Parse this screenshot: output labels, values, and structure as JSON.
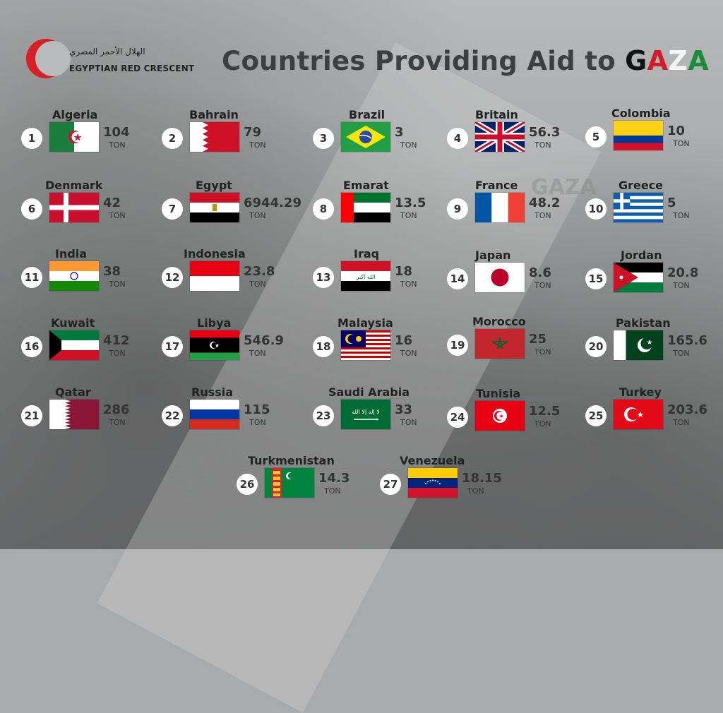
{
  "logo": {
    "arabic": "الهلال الأحمر المصري",
    "english": "EGYPTIAN RED CRESCENT"
  },
  "title": {
    "prefix": "Countries Providing Aid to ",
    "highlight_letters": [
      "G",
      "A",
      "Z",
      "A"
    ]
  },
  "watermark": "GAZA",
  "unit": "TON",
  "colors": {
    "red": "#d21e2b",
    "green": "#1a8c3a",
    "dark": "#3d3e40"
  },
  "countries": [
    {
      "rank": "1",
      "name": "Algeria",
      "value": "104",
      "flag": "algeria-flag-icon"
    },
    {
      "rank": "2",
      "name": "Bahrain",
      "value": "79",
      "flag": "bahrain-flag-icon"
    },
    {
      "rank": "3",
      "name": "Brazil",
      "value": "3",
      "flag": "brazil-flag-icon"
    },
    {
      "rank": "4",
      "name": "Britain",
      "value": "56.3",
      "flag": "britain-flag-icon"
    },
    {
      "rank": "5",
      "name": "Colombia",
      "value": "10",
      "flag": "colombia-flag-icon"
    },
    {
      "rank": "6",
      "name": "Denmark",
      "value": "42",
      "flag": "denmark-flag-icon"
    },
    {
      "rank": "7",
      "name": "Egypt",
      "value": "6944.29",
      "flag": "egypt-flag-icon"
    },
    {
      "rank": "8",
      "name": "Emarat",
      "value": "13.5",
      "flag": "emarat-flag-icon"
    },
    {
      "rank": "9",
      "name": "France",
      "value": "48.2",
      "flag": "france-flag-icon"
    },
    {
      "rank": "10",
      "name": "Greece",
      "value": "5",
      "flag": "greece-flag-icon"
    },
    {
      "rank": "11",
      "name": "India",
      "value": "38",
      "flag": "india-flag-icon"
    },
    {
      "rank": "12",
      "name": "Indonesia",
      "value": "23.8",
      "flag": "indonesia-flag-icon"
    },
    {
      "rank": "13",
      "name": "Iraq",
      "value": "18",
      "flag": "iraq-flag-icon"
    },
    {
      "rank": "14",
      "name": "Japan",
      "value": "8.6",
      "flag": "japan-flag-icon"
    },
    {
      "rank": "15",
      "name": "Jordan",
      "value": "20.8",
      "flag": "jordan-flag-icon"
    },
    {
      "rank": "16",
      "name": "Kuwait",
      "value": "412",
      "flag": "kuwait-flag-icon"
    },
    {
      "rank": "17",
      "name": "Libya",
      "value": "546.9",
      "flag": "libya-flag-icon"
    },
    {
      "rank": "18",
      "name": "Malaysia",
      "value": "16",
      "flag": "malaysia-flag-icon"
    },
    {
      "rank": "19",
      "name": "Morocco",
      "value": "25",
      "flag": "morocco-flag-icon"
    },
    {
      "rank": "20",
      "name": "Pakistan",
      "value": "165.6",
      "flag": "pakistan-flag-icon"
    },
    {
      "rank": "21",
      "name": "Qatar",
      "value": "286",
      "flag": "qatar-flag-icon"
    },
    {
      "rank": "22",
      "name": "Russia",
      "value": "115",
      "flag": "russia-flag-icon"
    },
    {
      "rank": "23",
      "name": "Saudi Arabia",
      "value": "33",
      "flag": "saudi-arabia-flag-icon"
    },
    {
      "rank": "24",
      "name": "Tunisia",
      "value": "12.5",
      "flag": "tunisia-flag-icon"
    },
    {
      "rank": "25",
      "name": "Turkey",
      "value": "203.6",
      "flag": "turkey-flag-icon"
    },
    {
      "rank": "26",
      "name": "Turkmenistan",
      "value": "14.3",
      "flag": "turkmenistan-flag-icon"
    },
    {
      "rank": "27",
      "name": "Venezuela",
      "value": "18.15",
      "flag": "venezuela-flag-icon"
    }
  ]
}
